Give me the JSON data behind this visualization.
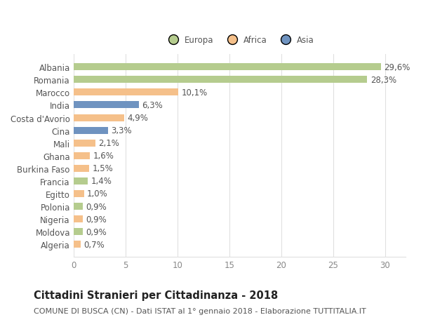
{
  "categories": [
    "Albania",
    "Romania",
    "Marocco",
    "India",
    "Costa d'Avorio",
    "Cina",
    "Mali",
    "Ghana",
    "Burkina Faso",
    "Francia",
    "Egitto",
    "Polonia",
    "Nigeria",
    "Moldova",
    "Algeria"
  ],
  "values": [
    29.6,
    28.3,
    10.1,
    6.3,
    4.9,
    3.3,
    2.1,
    1.6,
    1.5,
    1.4,
    1.0,
    0.9,
    0.9,
    0.9,
    0.7
  ],
  "labels": [
    "29,6%",
    "28,3%",
    "10,1%",
    "6,3%",
    "4,9%",
    "3,3%",
    "2,1%",
    "1,6%",
    "1,5%",
    "1,4%",
    "1,0%",
    "0,9%",
    "0,9%",
    "0,9%",
    "0,7%"
  ],
  "colors": [
    "#b5cc8e",
    "#b5cc8e",
    "#f5c08a",
    "#6f93c0",
    "#f5c08a",
    "#6f93c0",
    "#f5c08a",
    "#f5c08a",
    "#f5c08a",
    "#b5cc8e",
    "#f5c08a",
    "#b5cc8e",
    "#f5c08a",
    "#b5cc8e",
    "#f5c08a"
  ],
  "legend_labels": [
    "Europa",
    "Africa",
    "Asia"
  ],
  "legend_colors": [
    "#b5cc8e",
    "#f5c08a",
    "#6f93c0"
  ],
  "title": "Cittadini Stranieri per Cittadinanza - 2018",
  "subtitle": "COMUNE DI BUSCA (CN) - Dati ISTAT al 1° gennaio 2018 - Elaborazione TUTTITALIA.IT",
  "xlim": [
    0,
    32
  ],
  "xticks": [
    0,
    5,
    10,
    15,
    20,
    25,
    30
  ],
  "background_color": "#ffffff",
  "grid_color": "#e0e0e0",
  "bar_height": 0.55,
  "label_fontsize": 8.5,
  "ylabel_fontsize": 8.5,
  "xlabel_fontsize": 8.5,
  "title_fontsize": 10.5,
  "subtitle_fontsize": 8.0,
  "text_color": "#555555",
  "title_color": "#222222"
}
